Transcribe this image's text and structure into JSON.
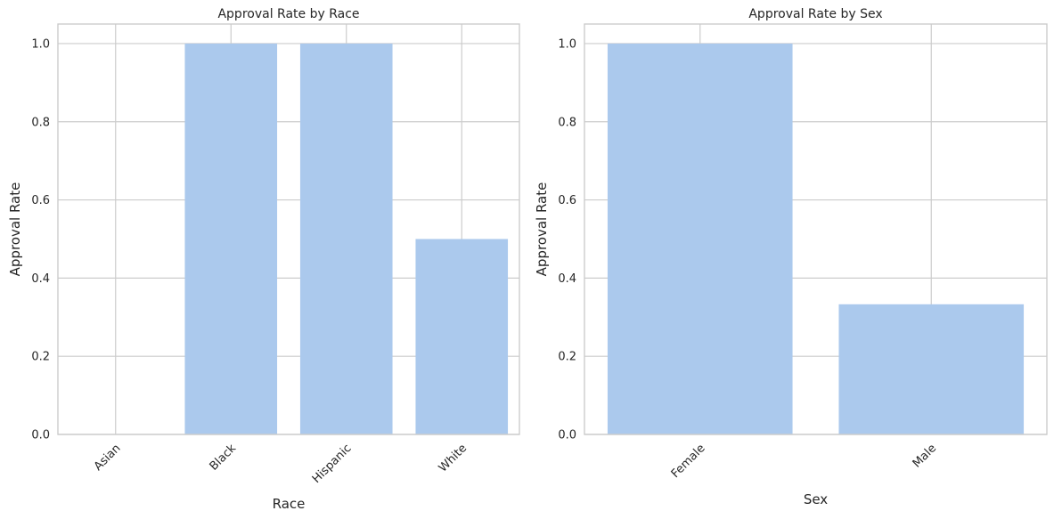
{
  "chart_data": [
    {
      "type": "bar",
      "title": "Approval Rate by Race",
      "xlabel": "Race",
      "ylabel": "Approval Rate",
      "categories": [
        "Asian",
        "Black",
        "Hispanic",
        "White"
      ],
      "values": [
        0.0,
        1.0,
        1.0,
        0.5
      ],
      "ylim": [
        0,
        1.05
      ],
      "yticks": [
        "0.0",
        "0.2",
        "0.4",
        "0.6",
        "0.8",
        "1.0"
      ],
      "grid": true,
      "bar_color": "#abc9ed"
    },
    {
      "type": "bar",
      "title": "Approval Rate by Sex",
      "xlabel": "Sex",
      "ylabel": "Approval Rate",
      "categories": [
        "Female",
        "Male"
      ],
      "values": [
        1.0,
        0.333
      ],
      "ylim": [
        0,
        1.05
      ],
      "yticks": [
        "0.0",
        "0.2",
        "0.4",
        "0.6",
        "0.8",
        "1.0"
      ],
      "grid": true,
      "bar_color": "#abc9ed"
    }
  ]
}
